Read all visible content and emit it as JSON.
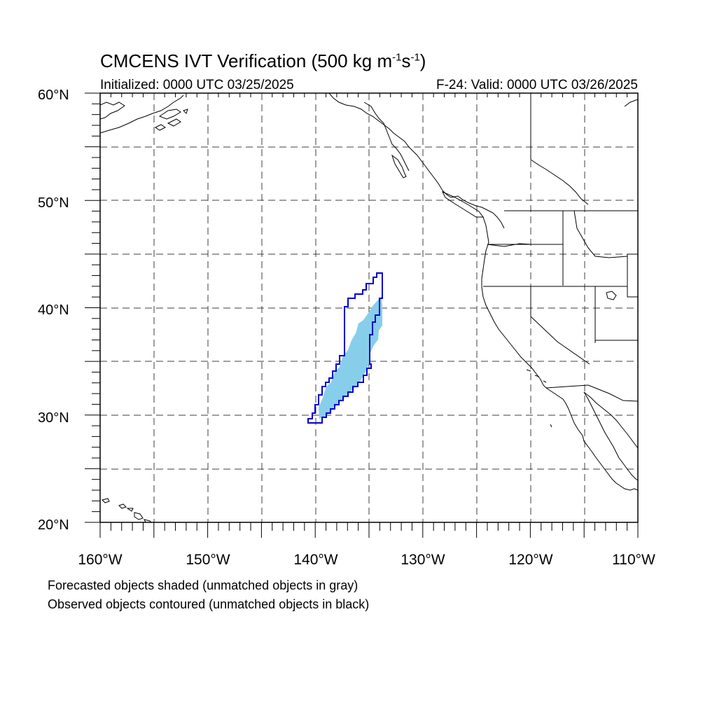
{
  "title": {
    "main": "CMCENS IVT Verification (500 kg m",
    "sup1": "-1",
    "mid": "s",
    "sup2": "-1",
    "end": ")"
  },
  "subtitle": {
    "initialized": "Initialized: 0000 UTC 03/25/2025",
    "valid": "F-24: Valid: 0000 UTC 03/26/2025"
  },
  "map": {
    "lat_labels": [
      "20°N",
      "30°N",
      "40°N",
      "50°N",
      "60°N"
    ],
    "lon_labels": [
      "160°W",
      "150°W",
      "140°W",
      "130°W",
      "120°W",
      "110°W"
    ],
    "grid": "dashed",
    "colors": {
      "forecast_fill": "#87ceeb",
      "observed_contour": "#0000cd",
      "coastline": "#000000"
    }
  },
  "footer": {
    "line1": "Forecasted objects shaded (unmatched objects in gray)",
    "line2": "Observed objects contoured (unmatched objects in black)"
  }
}
